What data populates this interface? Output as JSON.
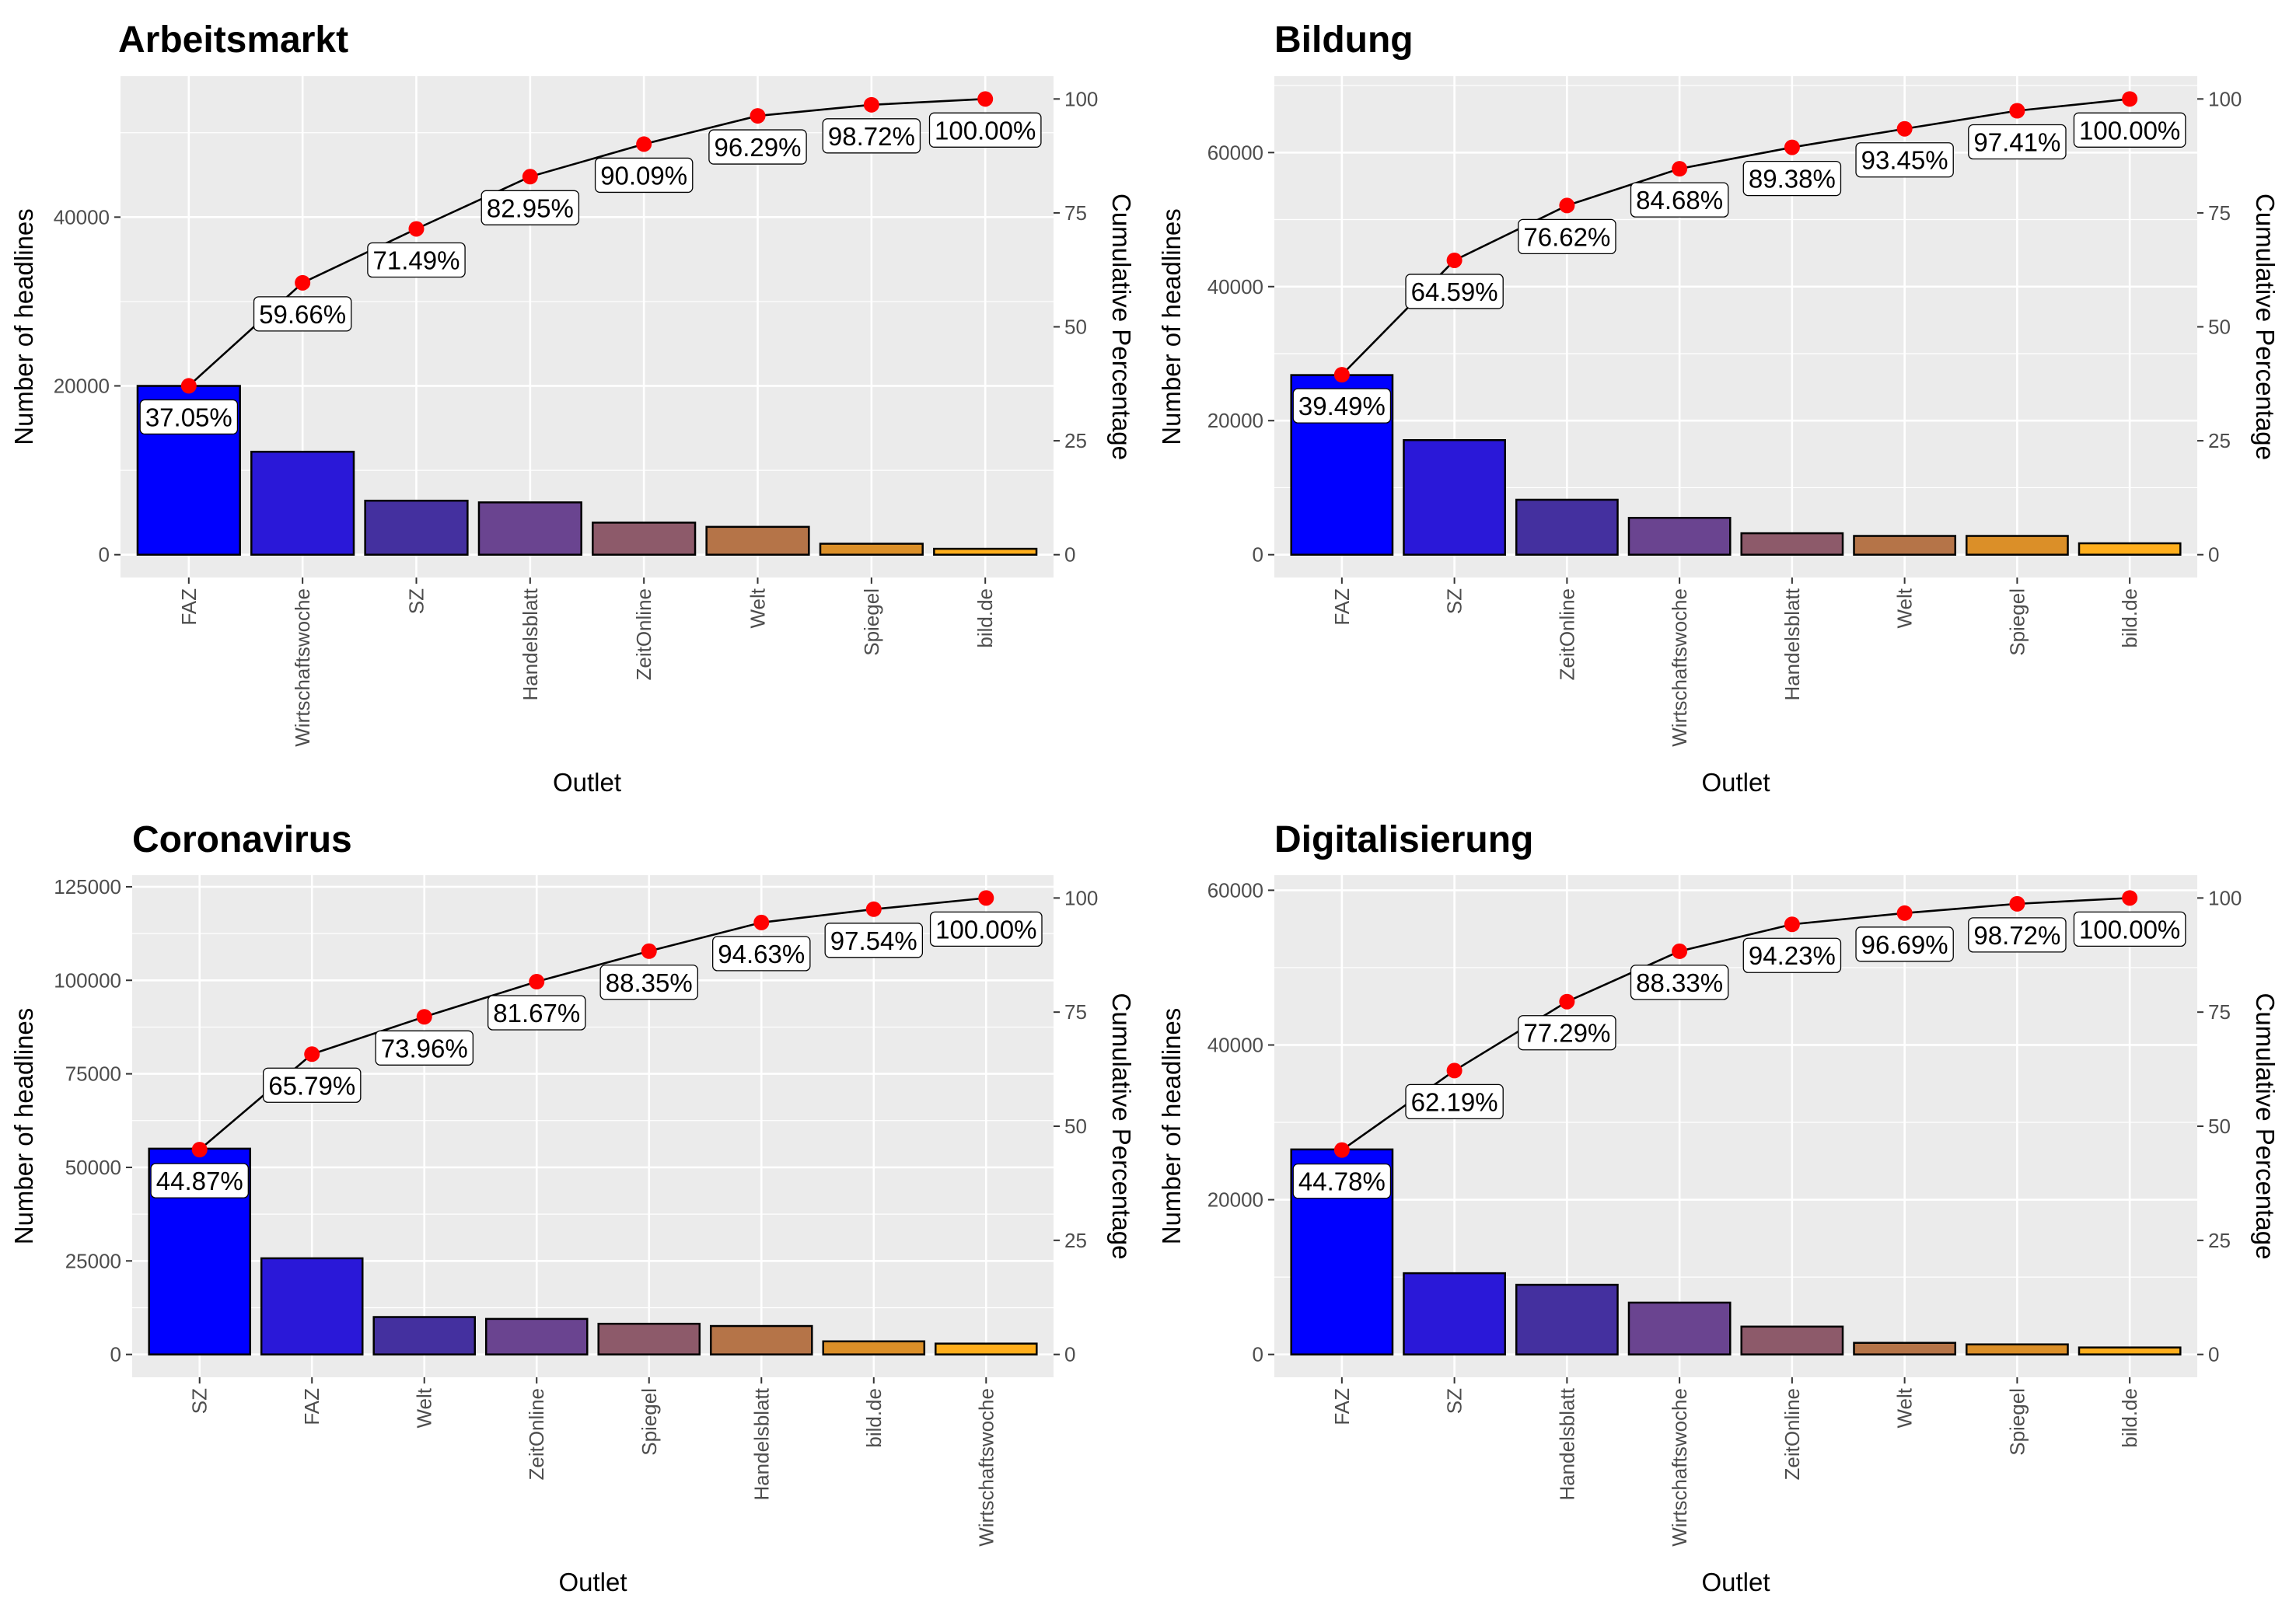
{
  "chart_data": [
    {
      "type": "bar",
      "title": "Arbeitsmarkt",
      "xlabel": "Outlet",
      "ylabel": "Number of headlines",
      "y2label": "Cumulative Percentage",
      "ylim": [
        0,
        54000
      ],
      "yticks": [
        0,
        20000,
        40000
      ],
      "y2ticks": [
        0,
        25,
        50,
        75,
        100
      ],
      "categories": [
        "FAZ",
        "Wirtschaftswoche",
        "SZ",
        "Handelsblatt",
        "ZeitOnline",
        "Welt",
        "Spiegel",
        "bild.de"
      ],
      "values": [
        20000,
        12200,
        6400,
        6200,
        3800,
        3300,
        1300,
        700
      ],
      "cumulative": [
        37.05,
        59.66,
        71.49,
        82.95,
        90.09,
        96.29,
        98.72,
        100.0
      ],
      "cumulative_labels": [
        "37.05%",
        "59.66%",
        "71.49%",
        "82.95%",
        "90.09%",
        "96.29%",
        "98.72%",
        "100.00%"
      ]
    },
    {
      "type": "bar",
      "title": "Bildung",
      "xlabel": "Outlet",
      "ylabel": "Number of headlines",
      "y2label": "Cumulative Percentage",
      "ylim": [
        0,
        68000
      ],
      "yticks": [
        0,
        20000,
        40000,
        60000
      ],
      "y2ticks": [
        0,
        25,
        50,
        75,
        100
      ],
      "categories": [
        "FAZ",
        "SZ",
        "ZeitOnline",
        "Wirtschaftswoche",
        "Handelsblatt",
        "Welt",
        "Spiegel",
        "bild.de"
      ],
      "values": [
        26800,
        17100,
        8200,
        5500,
        3200,
        2800,
        2800,
        1700
      ],
      "cumulative": [
        39.49,
        64.59,
        76.62,
        84.68,
        89.38,
        93.45,
        97.41,
        100.0
      ],
      "cumulative_labels": [
        "39.49%",
        "64.59%",
        "76.62%",
        "84.68%",
        "89.38%",
        "93.45%",
        "97.41%",
        "100.00%"
      ]
    },
    {
      "type": "bar",
      "title": "Coronavirus",
      "xlabel": "Outlet",
      "ylabel": "Number of headlines",
      "y2label": "Cumulative Percentage",
      "ylim": [
        0,
        122000
      ],
      "yticks": [
        0,
        25000,
        50000,
        75000,
        100000,
        125000
      ],
      "y2ticks": [
        0,
        25,
        50,
        75,
        100
      ],
      "categories": [
        "SZ",
        "FAZ",
        "Welt",
        "ZeitOnline",
        "Spiegel",
        "Handelsblatt",
        "bild.de",
        "Wirtschaftswoche"
      ],
      "values": [
        55000,
        25700,
        10000,
        9500,
        8200,
        7600,
        3500,
        2900
      ],
      "cumulative": [
        44.87,
        65.79,
        73.96,
        81.67,
        88.35,
        94.63,
        97.54,
        100.0
      ],
      "cumulative_labels": [
        "44.87%",
        "65.79%",
        "73.96%",
        "81.67%",
        "88.35%",
        "94.63%",
        "97.54%",
        "100.00%"
      ]
    },
    {
      "type": "bar",
      "title": "Digitalisierung",
      "xlabel": "Outlet",
      "ylabel": "Number of headlines",
      "y2label": "Cumulative Percentage",
      "ylim": [
        0,
        59000
      ],
      "yticks": [
        0,
        20000,
        40000,
        60000
      ],
      "y2ticks": [
        0,
        25,
        50,
        75,
        100
      ],
      "categories": [
        "FAZ",
        "SZ",
        "Handelsblatt",
        "Wirtschaftswoche",
        "ZeitOnline",
        "Welt",
        "Spiegel",
        "bild.de"
      ],
      "values": [
        26500,
        10500,
        9000,
        6700,
        3600,
        1500,
        1300,
        900
      ],
      "cumulative": [
        44.78,
        62.19,
        77.29,
        88.33,
        94.23,
        96.69,
        98.72,
        100.0
      ],
      "cumulative_labels": [
        "44.78%",
        "62.19%",
        "77.29%",
        "88.33%",
        "94.23%",
        "96.69%",
        "98.72%",
        "100.00%"
      ]
    }
  ],
  "colors": {
    "panel_background": "#ebebeb",
    "gridline": "#ffffff",
    "point": "#ff0000",
    "line": "#000000",
    "bar_outline": "#000000",
    "bar_gradient": [
      "#0000ff",
      "#2a18d8",
      "#44309f",
      "#6a4490",
      "#8d5a6a",
      "#b57448",
      "#db8f28",
      "#ffae1c"
    ]
  }
}
